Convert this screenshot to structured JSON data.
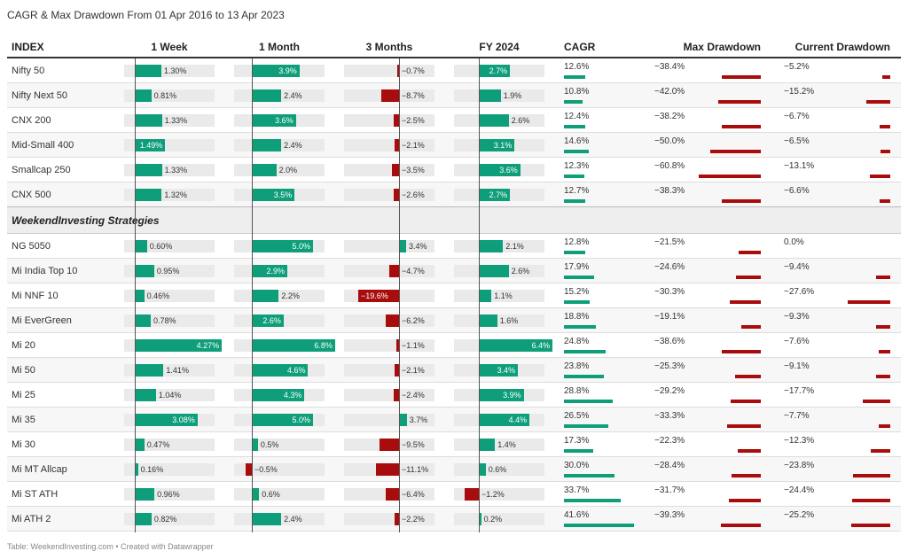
{
  "title": "CAGR & Max Drawdown From 01 Apr 2016 to 13 Apr 2023",
  "footer": "Table: WeekendInvesting.com • Created with Datawrapper",
  "colors": {
    "positive": "#0e9e79",
    "negative": "#a80c0c",
    "track": "#eaeaea"
  },
  "chart_data": {
    "type": "table",
    "columns": [
      "INDEX",
      "1 Week",
      "1 Month",
      "3 Months",
      "FY 2024",
      "CAGR",
      "Max Drawdown",
      "Current Drawdown"
    ],
    "section_label": "WeekendInvesting Strategies",
    "indices": [
      {
        "name": "Nifty 50",
        "w1": 1.3,
        "m1": 3.9,
        "m3": -0.7,
        "fy": 2.7,
        "cagr": 12.6,
        "maxdd": -38.4,
        "curdd": -5.2
      },
      {
        "name": "Nifty Next 50",
        "w1": 0.81,
        "m1": 2.4,
        "m3": -8.7,
        "fy": 1.9,
        "cagr": 10.8,
        "maxdd": -42.0,
        "curdd": -15.2
      },
      {
        "name": "CNX 200",
        "w1": 1.33,
        "m1": 3.6,
        "m3": -2.5,
        "fy": 2.6,
        "cagr": 12.4,
        "maxdd": -38.2,
        "curdd": -6.7
      },
      {
        "name": "Mid-Small 400",
        "w1": 1.49,
        "m1": 2.4,
        "m3": -2.1,
        "fy": 3.1,
        "cagr": 14.6,
        "maxdd": -50.0,
        "curdd": -6.5
      },
      {
        "name": "Smallcap 250",
        "w1": 1.33,
        "m1": 2.0,
        "m3": -3.5,
        "fy": 3.6,
        "cagr": 12.3,
        "maxdd": -60.8,
        "curdd": -13.1
      },
      {
        "name": "CNX 500",
        "w1": 1.32,
        "m1": 3.5,
        "m3": -2.6,
        "fy": 2.7,
        "cagr": 12.7,
        "maxdd": -38.3,
        "curdd": -6.6
      }
    ],
    "strategies": [
      {
        "name": "NG 5050",
        "w1": 0.6,
        "m1": 5.0,
        "m3": 3.4,
        "fy": 2.1,
        "cagr": 12.8,
        "maxdd": -21.5,
        "curdd": 0.0
      },
      {
        "name": "Mi India Top 10",
        "w1": 0.95,
        "m1": 2.9,
        "m3": -4.7,
        "fy": 2.6,
        "cagr": 17.9,
        "maxdd": -24.6,
        "curdd": -9.4
      },
      {
        "name": "Mi NNF 10",
        "w1": 0.46,
        "m1": 2.2,
        "m3": -19.6,
        "fy": 1.1,
        "cagr": 15.2,
        "maxdd": -30.3,
        "curdd": -27.6
      },
      {
        "name": "Mi EverGreen",
        "w1": 0.78,
        "m1": 2.6,
        "m3": -6.2,
        "fy": 1.6,
        "cagr": 18.8,
        "maxdd": -19.1,
        "curdd": -9.3
      },
      {
        "name": "Mi 20",
        "w1": 4.27,
        "m1": 6.8,
        "m3": -1.1,
        "fy": 6.4,
        "cagr": 24.8,
        "maxdd": -38.6,
        "curdd": -7.6
      },
      {
        "name": "Mi 50",
        "w1": 1.41,
        "m1": 4.6,
        "m3": -2.1,
        "fy": 3.4,
        "cagr": 23.8,
        "maxdd": -25.3,
        "curdd": -9.1
      },
      {
        "name": "Mi 25",
        "w1": 1.04,
        "m1": 4.3,
        "m3": -2.4,
        "fy": 3.9,
        "cagr": 28.8,
        "maxdd": -29.2,
        "curdd": -17.7
      },
      {
        "name": "Mi 35",
        "w1": 3.08,
        "m1": 5.0,
        "m3": 3.7,
        "fy": 4.4,
        "cagr": 26.5,
        "maxdd": -33.3,
        "curdd": -7.7
      },
      {
        "name": "Mi 30",
        "w1": 0.47,
        "m1": 0.5,
        "m3": -9.5,
        "fy": 1.4,
        "cagr": 17.3,
        "maxdd": -22.3,
        "curdd": -12.3
      },
      {
        "name": "Mi MT Allcap",
        "w1": 0.16,
        "m1": -0.5,
        "m3": -11.1,
        "fy": 0.6,
        "cagr": 30.0,
        "maxdd": -28.4,
        "curdd": -23.8
      },
      {
        "name": "Mi ST ATH",
        "w1": 0.96,
        "m1": 0.6,
        "m3": -6.4,
        "fy": -1.2,
        "cagr": 33.7,
        "maxdd": -31.7,
        "curdd": -24.4
      },
      {
        "name": "Mi ATH 2",
        "w1": 0.82,
        "m1": 2.4,
        "m3": -2.2,
        "fy": 0.2,
        "cagr": 41.6,
        "maxdd": -39.3,
        "curdd": -25.2
      }
    ]
  }
}
